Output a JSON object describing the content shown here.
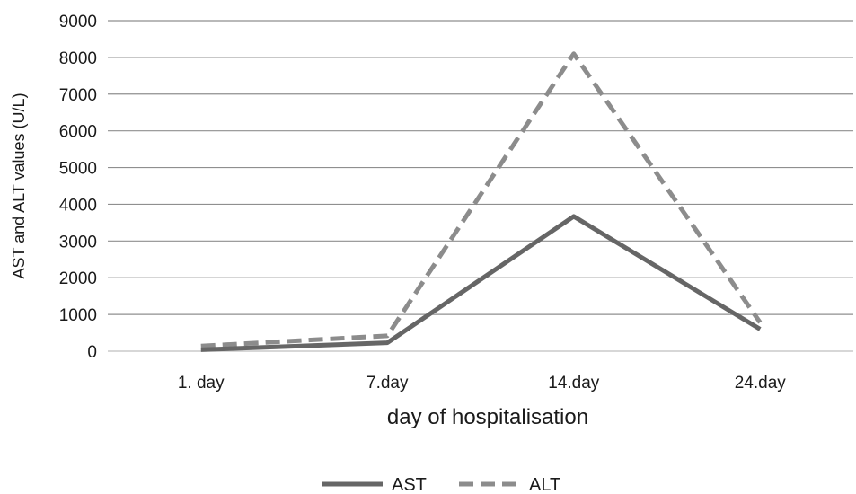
{
  "chart_data": {
    "type": "line",
    "categories": [
      "1. day",
      "7.day",
      "14.day",
      "24.day"
    ],
    "series": [
      {
        "name": "AST",
        "values": [
          40,
          230,
          3670,
          600
        ],
        "color": "#666666",
        "dash": "solid"
      },
      {
        "name": "ALT",
        "values": [
          140,
          420,
          8100,
          780
        ],
        "color": "#8c8c8c",
        "dash": "dashed"
      }
    ],
    "xlabel": "day of hospitalisation",
    "ylabel": "AST and ALT values (U/L)",
    "ylim": [
      0,
      9000
    ],
    "yticks": [
      "0",
      "1000",
      "2000",
      "3000",
      "4000",
      "5000",
      "6000",
      "7000",
      "8000",
      "9000"
    ],
    "grid": true,
    "legend_position": "bottom"
  }
}
